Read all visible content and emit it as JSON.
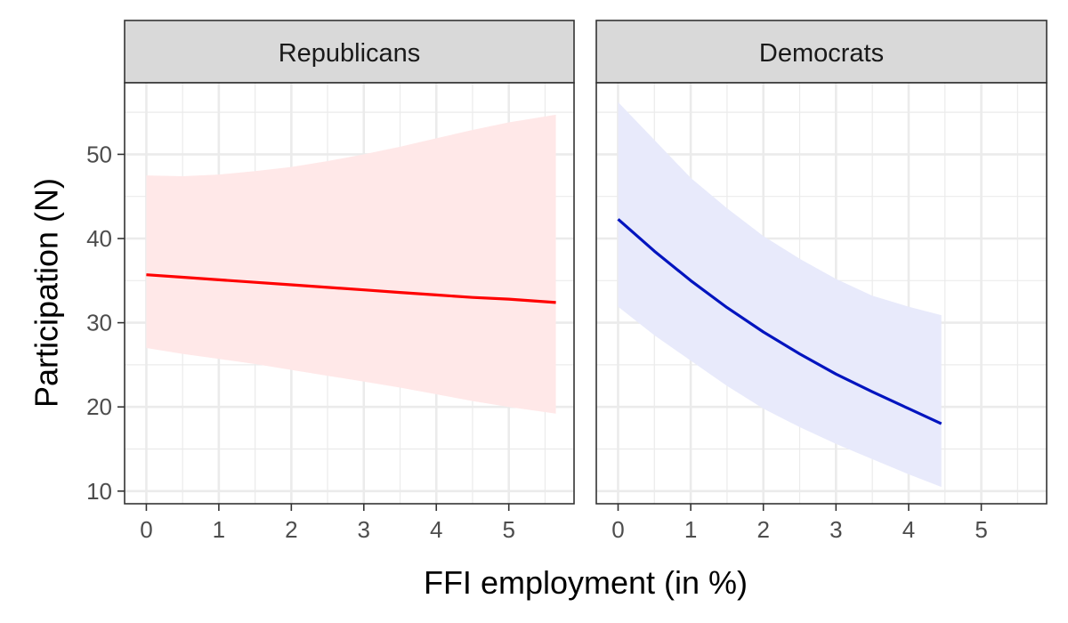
{
  "chart_data": {
    "type": "line",
    "xlabel": "FFI employment (in %)",
    "ylabel": "Participation (N)",
    "xlim": [
      -0.3,
      5.9
    ],
    "ylim": [
      8.5,
      58.5
    ],
    "x_ticks": [
      0,
      1,
      2,
      3,
      4,
      5
    ],
    "y_ticks": [
      10,
      20,
      30,
      40,
      50
    ],
    "grid": true,
    "legend": "none",
    "facets": [
      {
        "strip_label": "Republicans",
        "color": "#ff0000",
        "ribbon_color": "#ffe8e8",
        "series": {
          "x": [
            0,
            0.5,
            1,
            1.5,
            2,
            2.5,
            3,
            3.5,
            4,
            4.5,
            5,
            5.65
          ],
          "y": [
            35.7,
            35.4,
            35.1,
            34.8,
            34.5,
            34.2,
            33.9,
            33.6,
            33.3,
            33.0,
            32.8,
            32.4
          ],
          "lower": [
            27.0,
            26.3,
            25.7,
            25.1,
            24.4,
            23.7,
            23.0,
            22.3,
            21.5,
            20.7,
            20.0,
            19.2
          ],
          "upper": [
            47.5,
            47.4,
            47.6,
            48.0,
            48.5,
            49.2,
            50.0,
            50.9,
            51.9,
            52.9,
            53.8,
            54.7
          ]
        }
      },
      {
        "strip_label": "Democrats",
        "color": "#0014bf",
        "ribbon_color": "#e8eafb",
        "series": {
          "x": [
            0,
            0.5,
            1,
            1.5,
            2,
            2.5,
            3,
            3.5,
            4,
            4.45
          ],
          "y": [
            42.3,
            38.5,
            35.0,
            31.8,
            28.9,
            26.3,
            23.9,
            21.8,
            19.8,
            18.0
          ],
          "lower": [
            31.9,
            28.5,
            25.5,
            22.5,
            19.8,
            17.6,
            15.6,
            13.8,
            12.0,
            10.5
          ],
          "upper": [
            56.2,
            51.7,
            47.2,
            43.6,
            40.3,
            37.6,
            35.2,
            33.2,
            31.9,
            30.9
          ]
        }
      }
    ]
  }
}
